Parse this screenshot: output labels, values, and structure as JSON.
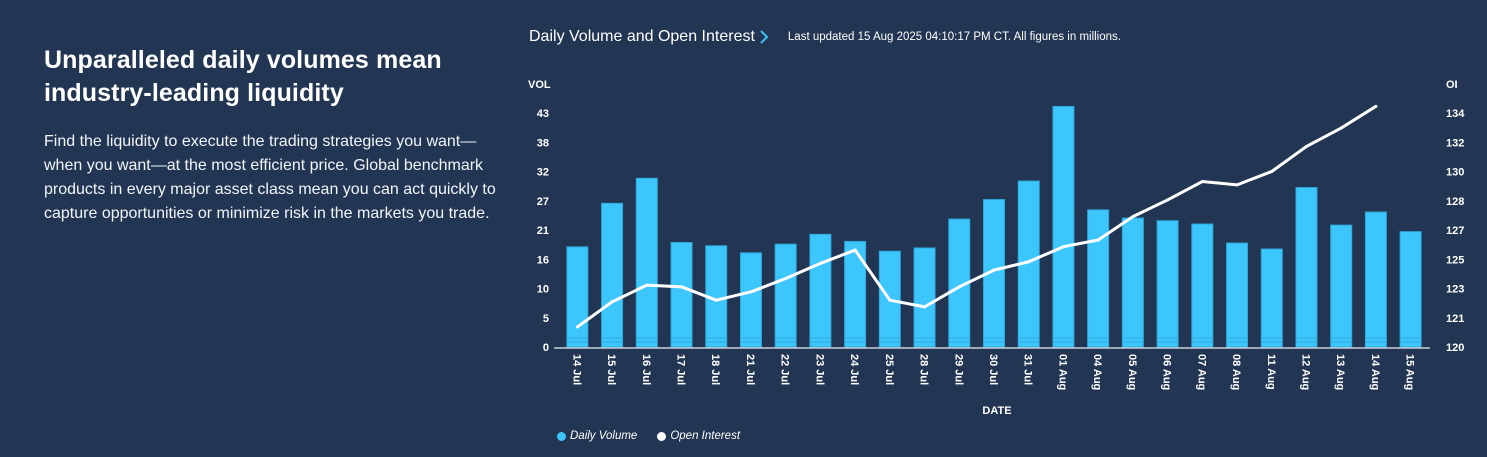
{
  "intro": {
    "heading": "Unparalleled daily volumes mean industry-leading liquidity",
    "body": "Find the liquidity to execute the trading strategies you want—when you want—at the most efficient price. Global benchmark products in every major asset class mean you can act quickly to capture opportunities or minimize risk in the markets you trade."
  },
  "chart_header": {
    "title": "Daily Volume and Open Interest",
    "chevron_icon": "chevron-right-icon",
    "updated": "Last updated 15 Aug 2025 04:10:17 PM CT. All figures in millions."
  },
  "colors": {
    "background": "#223553",
    "volume_bar": "#3CC6FC",
    "volume_bar_edge": "#2FA8DA",
    "open_interest_line": "#FFFFFF",
    "accent_chevron": "#3CC6FC"
  },
  "chart_data": {
    "type": "bar",
    "title": "Daily Volume and Open Interest",
    "xlabel": "DATE",
    "ylabel": "VOL",
    "y2label": "OI",
    "categories": [
      "14 Jul",
      "15 Jul",
      "16 Jul",
      "17 Jul",
      "18 Jul",
      "21 Jul",
      "22 Jul",
      "23 Jul",
      "24 Jul",
      "25 Jul",
      "28 Jul",
      "29 Jul",
      "30 Jul",
      "31 Jul",
      "01 Aug",
      "04 Aug",
      "05 Aug",
      "06 Aug",
      "07 Aug",
      "08 Aug",
      "11 Aug",
      "12 Aug",
      "13 Aug",
      "14 Aug",
      "15 Aug"
    ],
    "y_ticks": [
      "0",
      "5",
      "10",
      "16",
      "21",
      "27",
      "32",
      "38",
      "43"
    ],
    "y_range": [
      0,
      43
    ],
    "y2_ticks": [
      "120",
      "121",
      "123",
      "125",
      "127",
      "128",
      "130",
      "132",
      "134"
    ],
    "y2_range": [
      120,
      134
    ],
    "grid": false,
    "legend_position": "bottom-left",
    "series": [
      {
        "name": "Daily Volume",
        "type": "bar",
        "axis": "left",
        "values": [
          18.4,
          26.4,
          31.0,
          19.2,
          18.6,
          17.3,
          18.9,
          20.7,
          19.4,
          17.6,
          18.2,
          23.5,
          27.1,
          30.5,
          44.2,
          25.2,
          23.7,
          23.2,
          22.6,
          19.1,
          18.0,
          29.3,
          22.4,
          24.8,
          21.2
        ]
      },
      {
        "name": "Open Interest",
        "type": "line",
        "axis": "right",
        "values": [
          121.2,
          122.7,
          123.7,
          123.6,
          122.8,
          123.3,
          124.1,
          125.0,
          125.8,
          122.8,
          122.4,
          123.6,
          124.6,
          125.1,
          126.0,
          126.4,
          127.8,
          128.8,
          129.9,
          129.7,
          130.5,
          132.0,
          133.1,
          134.4,
          null
        ]
      }
    ]
  },
  "legend": [
    {
      "label": "Daily Volume",
      "color": "#3CC6FC"
    },
    {
      "label": "Open Interest",
      "color": "#FFFFFF"
    }
  ]
}
